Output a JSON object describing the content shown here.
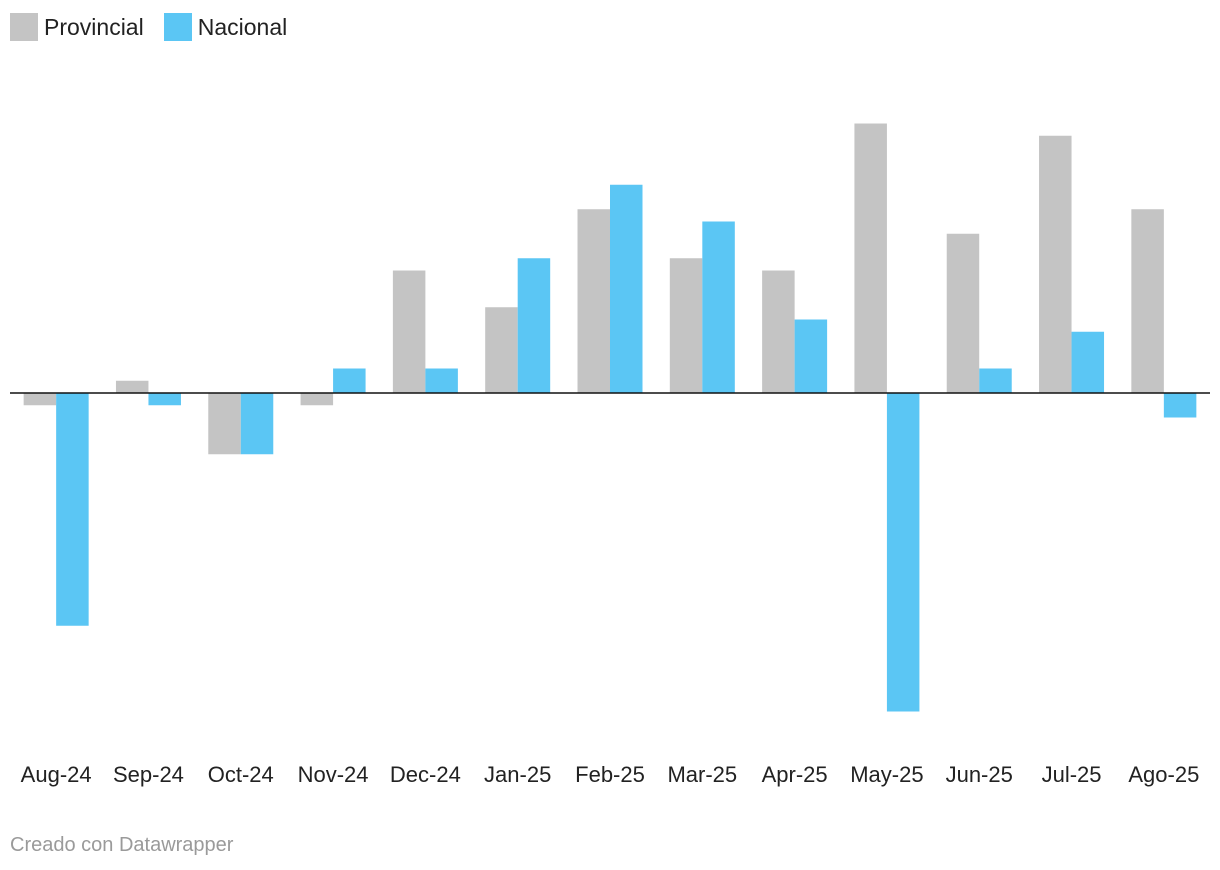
{
  "chart_data": {
    "type": "bar",
    "categories": [
      "Aug-24",
      "Sep-24",
      "Oct-24",
      "Nov-24",
      "Dec-24",
      "Jan-25",
      "Feb-25",
      "Mar-25",
      "Apr-25",
      "May-25",
      "Jun-25",
      "Jul-25",
      "Ago-25"
    ],
    "series": [
      {
        "name": "Provincial",
        "color": "#c4c4c4",
        "values": [
          -0.1,
          0.1,
          -0.5,
          -0.1,
          1.0,
          0.7,
          1.5,
          1.1,
          1.0,
          2.2,
          1.3,
          2.1,
          1.5
        ]
      },
      {
        "name": "Nacional",
        "color": "#5bc6f4",
        "values": [
          -1.9,
          -0.1,
          -0.5,
          0.2,
          0.2,
          1.1,
          1.7,
          1.4,
          0.6,
          -2.6,
          0.2,
          0.5,
          -0.2
        ]
      }
    ],
    "ylim": [
      -2.8,
      2.6
    ],
    "legend_position": "top-left",
    "grid": false
  },
  "legend": [
    {
      "label": "Provincial",
      "color": "#c4c4c4"
    },
    {
      "label": "Nacional",
      "color": "#5bc6f4"
    }
  ],
  "footer": "Creado con Datawrapper"
}
